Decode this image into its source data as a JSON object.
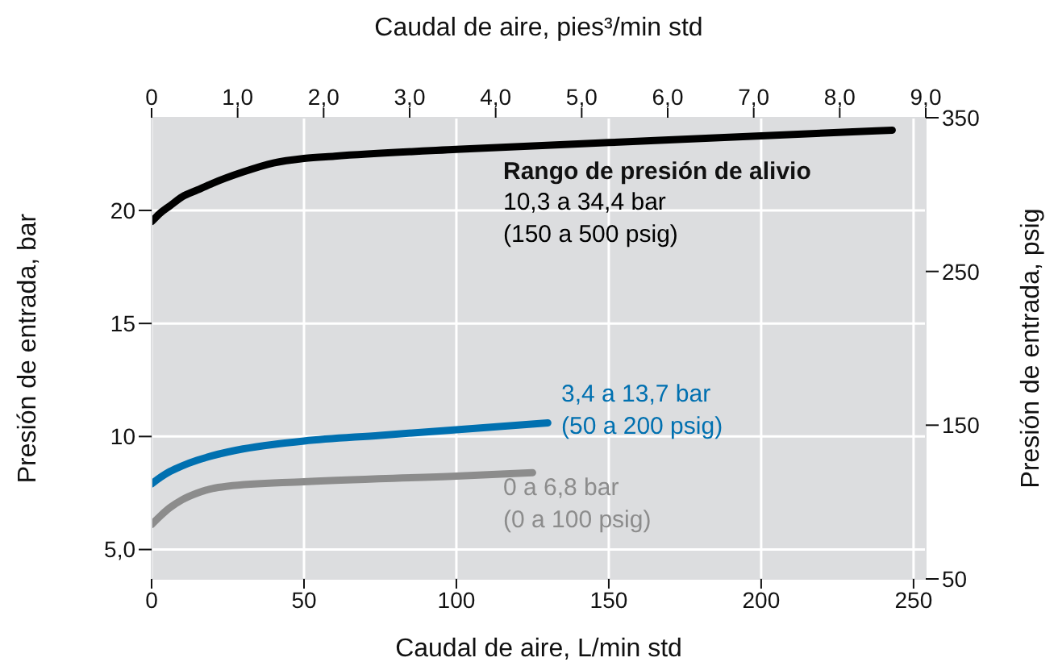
{
  "chart_data": {
    "type": "line",
    "xlabel": "Caudal de aire, L/min std",
    "x2label": "Caudal de aire, pies³/min std",
    "ylabel": "Presión de entrada, bar",
    "y2label": "Presión de entrada, psig",
    "xlim": [
      0,
      254
    ],
    "xticks": [
      0,
      50,
      100,
      150,
      200,
      250
    ],
    "x2lim": [
      0,
      9.0
    ],
    "x2ticks": [
      0,
      {
        "value": 1,
        "label": "1,0"
      },
      {
        "value": 2,
        "label": "2,0"
      },
      {
        "value": 3,
        "label": "3,0"
      },
      {
        "value": 4,
        "label": "4,0"
      },
      {
        "value": 5,
        "label": "5,0"
      },
      {
        "value": 6,
        "label": "6,0"
      },
      {
        "value": 7,
        "label": "7,0"
      },
      {
        "value": 8,
        "label": "8,0"
      },
      {
        "value": 9,
        "label": "9,0"
      }
    ],
    "ylim": [
      3.7,
      24.1
    ],
    "yticks": [
      {
        "value": 5,
        "label": "5,0"
      },
      10,
      15,
      20
    ],
    "y2lim": [
      50,
      350
    ],
    "y2ticks": [
      50,
      150,
      250,
      350
    ],
    "grid": true,
    "legend": false,
    "marker": "none",
    "line_style": "solid",
    "annotations": [
      "Rango de presión de alivio"
    ],
    "series": [
      {
        "name": "10,3 a 34,4 bar\n(150 a 500 psig)",
        "color": "#000000",
        "x": [
          0,
          3,
          6,
          10,
          15,
          20,
          30,
          40,
          50,
          60,
          100,
          150,
          200,
          243
        ],
        "values": [
          19.5,
          19.9,
          20.2,
          20.6,
          20.9,
          21.2,
          21.7,
          22.1,
          22.3,
          22.4,
          22.7,
          23.0,
          23.3,
          23.55
        ]
      },
      {
        "name": "3,4 a 13,7 bar\n(50 a 200 psig)",
        "color": "#0070b0",
        "x": [
          0,
          3,
          6,
          10,
          15,
          20,
          30,
          40,
          50,
          75,
          100,
          130
        ],
        "values": [
          7.9,
          8.2,
          8.45,
          8.7,
          8.95,
          9.15,
          9.45,
          9.65,
          9.8,
          10.05,
          10.3,
          10.6
        ]
      },
      {
        "name": "0 a 6,8 bar\n(0 a 100 psig)",
        "color": "#8c8c8c",
        "x": [
          0,
          3,
          6,
          10,
          15,
          20,
          25,
          50,
          100,
          125
        ],
        "values": [
          6.1,
          6.5,
          6.85,
          7.2,
          7.5,
          7.7,
          7.8,
          8.0,
          8.25,
          8.4
        ]
      }
    ]
  }
}
